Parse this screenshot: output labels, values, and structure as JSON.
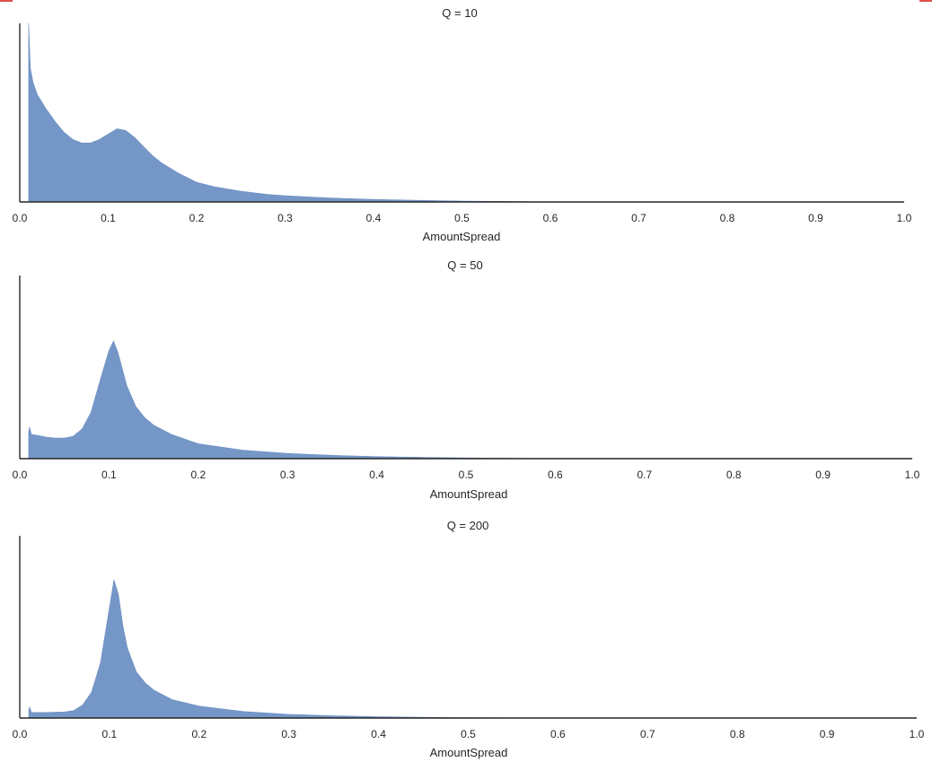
{
  "chart_data": [
    {
      "type": "area",
      "title": "Q = 10",
      "xlabel": "AmountSpread",
      "ylabel": "",
      "xlim": [
        0.0,
        1.0
      ],
      "xticks": [
        "0.0",
        "0.1",
        "0.2",
        "0.3",
        "0.4",
        "0.5",
        "0.6",
        "0.7",
        "0.8",
        "0.9",
        "1.0"
      ],
      "yticks_shown": false,
      "series": [
        {
          "x": [
            0.01,
            0.012,
            0.015,
            0.02,
            0.03,
            0.04,
            0.05,
            0.06,
            0.07,
            0.08,
            0.09,
            0.1,
            0.11,
            0.12,
            0.13,
            0.14,
            0.15,
            0.16,
            0.18,
            0.2,
            0.22,
            0.25,
            0.28,
            0.3,
            0.35,
            0.4,
            0.45,
            0.5,
            0.55,
            0.57,
            0.6
          ],
          "y": [
            1.0,
            0.75,
            0.67,
            0.6,
            0.52,
            0.45,
            0.39,
            0.35,
            0.33,
            0.33,
            0.35,
            0.38,
            0.41,
            0.4,
            0.36,
            0.31,
            0.26,
            0.22,
            0.16,
            0.11,
            0.085,
            0.06,
            0.042,
            0.035,
            0.022,
            0.014,
            0.009,
            0.005,
            0.003,
            0.0015,
            0.0
          ]
        }
      ]
    },
    {
      "type": "area",
      "title": "Q = 50",
      "xlabel": "AmountSpread",
      "ylabel": "",
      "xlim": [
        0.0,
        1.0
      ],
      "xticks": [
        "0.0",
        "0.1",
        "0.2",
        "0.3",
        "0.4",
        "0.5",
        "0.6",
        "0.7",
        "0.8",
        "0.9",
        "1.0"
      ],
      "yticks_shown": false,
      "series": [
        {
          "x": [
            0.01,
            0.011,
            0.013,
            0.02,
            0.03,
            0.04,
            0.05,
            0.06,
            0.07,
            0.08,
            0.09,
            0.1,
            0.105,
            0.11,
            0.12,
            0.13,
            0.14,
            0.15,
            0.17,
            0.2,
            0.25,
            0.3,
            0.35,
            0.4,
            0.45,
            0.5,
            0.55,
            0.6
          ],
          "y": [
            0.14,
            0.17,
            0.13,
            0.125,
            0.115,
            0.11,
            0.11,
            0.12,
            0.16,
            0.25,
            0.42,
            0.58,
            0.63,
            0.57,
            0.39,
            0.28,
            0.22,
            0.18,
            0.13,
            0.08,
            0.045,
            0.028,
            0.018,
            0.011,
            0.007,
            0.004,
            0.002,
            0.0
          ]
        }
      ]
    },
    {
      "type": "area",
      "title": "Q = 200",
      "xlabel": "AmountSpread",
      "ylabel": "",
      "xlim": [
        0.0,
        1.0
      ],
      "xticks": [
        "0.0",
        "0.1",
        "0.2",
        "0.3",
        "0.4",
        "0.5",
        "0.6",
        "0.7",
        "0.8",
        "0.9",
        "1.0"
      ],
      "yticks_shown": false,
      "series": [
        {
          "x": [
            0.01,
            0.011,
            0.013,
            0.03,
            0.05,
            0.06,
            0.07,
            0.08,
            0.09,
            0.1,
            0.105,
            0.11,
            0.115,
            0.12,
            0.13,
            0.14,
            0.15,
            0.17,
            0.2,
            0.25,
            0.3,
            0.35,
            0.4,
            0.45,
            0.5,
            0.6
          ],
          "y": [
            0.04,
            0.06,
            0.03,
            0.03,
            0.033,
            0.04,
            0.07,
            0.14,
            0.3,
            0.6,
            0.75,
            0.67,
            0.5,
            0.38,
            0.25,
            0.19,
            0.15,
            0.1,
            0.065,
            0.035,
            0.02,
            0.012,
            0.007,
            0.004,
            0.002,
            0.0
          ]
        }
      ]
    }
  ],
  "colors": {
    "fill": "#7597c8",
    "edge": "#6d90c2",
    "axis": "#262626",
    "text": "#262626",
    "corner_mark": "#e0524a"
  }
}
